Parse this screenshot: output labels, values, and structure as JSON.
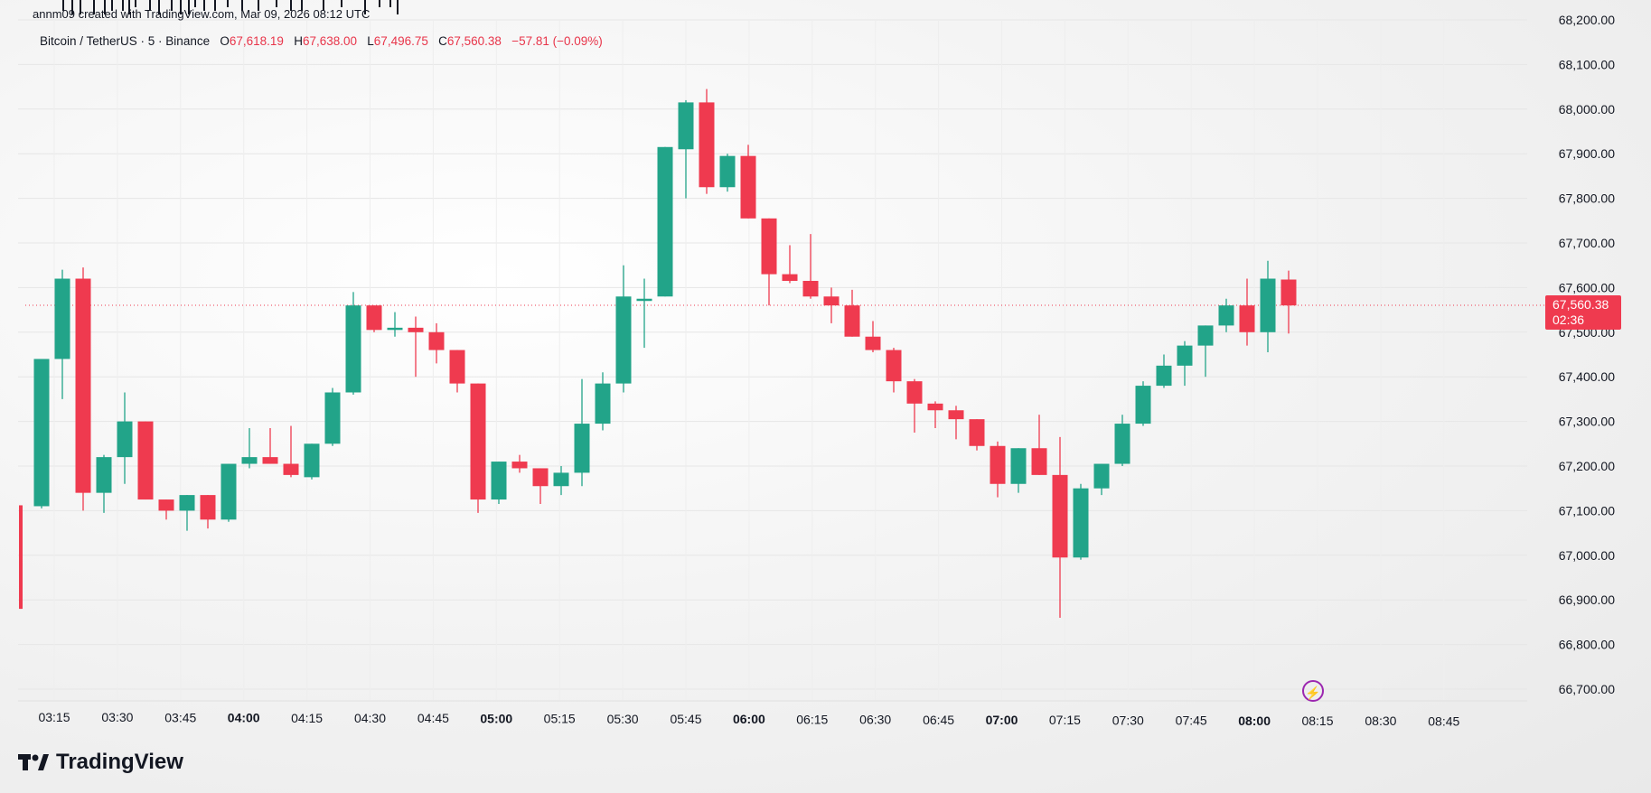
{
  "credit": "annm09 created with TradingView.com, Mar 09, 2026 08:12 UTC",
  "legend": {
    "symbol": "Bitcoin / TetherUS · 5 · Binance",
    "o_label": "O",
    "o": "67,618.19",
    "h_label": "H",
    "h": "67,638.00",
    "l_label": "L",
    "l": "67,496.75",
    "c_label": "C",
    "c": "67,560.38",
    "change": "−57.81 (−0.09%)"
  },
  "last_price": {
    "value": "67,560.38",
    "countdown": "02:36"
  },
  "brand": "TradingView",
  "colors": {
    "up": "#22a489",
    "down": "#ef3a4f",
    "axis_text": "#131722"
  },
  "chart_data": {
    "type": "candlestick",
    "y_axis": {
      "min": 66700,
      "max": 68200,
      "ticks": [
        "68,200.00",
        "68,100.00",
        "68,000.00",
        "67,900.00",
        "67,800.00",
        "67,700.00",
        "67,600.00",
        "67,500.00",
        "67,400.00",
        "67,300.00",
        "67,200.00",
        "67,100.00",
        "67,000.00",
        "66,900.00",
        "66,800.00",
        "66,700.00"
      ]
    },
    "x_axis": {
      "labels": [
        "03:15",
        "03:30",
        "03:45",
        "04:00",
        "04:15",
        "04:30",
        "04:45",
        "05:00",
        "05:15",
        "05:30",
        "05:45",
        "06:00",
        "06:15",
        "06:30",
        "06:45",
        "07:00",
        "07:15",
        "07:30",
        "07:45",
        "08:00",
        "08:15",
        "08:30",
        "08:45"
      ],
      "bold": [
        "04:00",
        "05:00",
        "06:00",
        "07:00",
        "08:00"
      ]
    },
    "last_price": 67560.38,
    "candles": [
      {
        "o": 67112,
        "h": 67112,
        "l": 66880,
        "c": 66880
      },
      {
        "o": 67110,
        "h": 67440,
        "l": 67105,
        "c": 67440
      },
      {
        "o": 67440,
        "h": 67640,
        "l": 67350,
        "c": 67620
      },
      {
        "o": 67620,
        "h": 67645,
        "l": 67100,
        "c": 67140
      },
      {
        "o": 67140,
        "h": 67225,
        "l": 67095,
        "c": 67220
      },
      {
        "o": 67220,
        "h": 67365,
        "l": 67160,
        "c": 67300
      },
      {
        "o": 67300,
        "h": 67300,
        "l": 67125,
        "c": 67125
      },
      {
        "o": 67125,
        "h": 67125,
        "l": 67080,
        "c": 67100
      },
      {
        "o": 67100,
        "h": 67135,
        "l": 67055,
        "c": 67135
      },
      {
        "o": 67135,
        "h": 67135,
        "l": 67060,
        "c": 67080
      },
      {
        "o": 67080,
        "h": 67205,
        "l": 67075,
        "c": 67205
      },
      {
        "o": 67205,
        "h": 67285,
        "l": 67195,
        "c": 67220
      },
      {
        "o": 67220,
        "h": 67285,
        "l": 67205,
        "c": 67205
      },
      {
        "o": 67205,
        "h": 67290,
        "l": 67175,
        "c": 67180
      },
      {
        "o": 67175,
        "h": 67250,
        "l": 67170,
        "c": 67250
      },
      {
        "o": 67250,
        "h": 67375,
        "l": 67245,
        "c": 67365
      },
      {
        "o": 67365,
        "h": 67590,
        "l": 67360,
        "c": 67560
      },
      {
        "o": 67560,
        "h": 67560,
        "l": 67500,
        "c": 67505
      },
      {
        "o": 67505,
        "h": 67545,
        "l": 67490,
        "c": 67510
      },
      {
        "o": 67510,
        "h": 67535,
        "l": 67400,
        "c": 67500
      },
      {
        "o": 67500,
        "h": 67520,
        "l": 67430,
        "c": 67460
      },
      {
        "o": 67460,
        "h": 67460,
        "l": 67365,
        "c": 67385
      },
      {
        "o": 67385,
        "h": 67385,
        "l": 67095,
        "c": 67125
      },
      {
        "o": 67125,
        "h": 67210,
        "l": 67115,
        "c": 67210
      },
      {
        "o": 67210,
        "h": 67225,
        "l": 67185,
        "c": 67195
      },
      {
        "o": 67195,
        "h": 67195,
        "l": 67115,
        "c": 67155
      },
      {
        "o": 67155,
        "h": 67200,
        "l": 67135,
        "c": 67185
      },
      {
        "o": 67185,
        "h": 67395,
        "l": 67155,
        "c": 67295
      },
      {
        "o": 67295,
        "h": 67410,
        "l": 67280,
        "c": 67385
      },
      {
        "o": 67385,
        "h": 67650,
        "l": 67365,
        "c": 67580
      },
      {
        "o": 67570,
        "h": 67620,
        "l": 67465,
        "c": 67575
      },
      {
        "o": 67580,
        "h": 67915,
        "l": 67580,
        "c": 67915
      },
      {
        "o": 67910,
        "h": 68020,
        "l": 67800,
        "c": 68015
      },
      {
        "o": 68015,
        "h": 68045,
        "l": 67810,
        "c": 67825
      },
      {
        "o": 67825,
        "h": 67900,
        "l": 67815,
        "c": 67895
      },
      {
        "o": 67895,
        "h": 67920,
        "l": 67755,
        "c": 67755
      },
      {
        "o": 67755,
        "h": 67755,
        "l": 67560,
        "c": 67630
      },
      {
        "o": 67630,
        "h": 67695,
        "l": 67610,
        "c": 67615
      },
      {
        "o": 67615,
        "h": 67720,
        "l": 67575,
        "c": 67580
      },
      {
        "o": 67580,
        "h": 67600,
        "l": 67520,
        "c": 67560
      },
      {
        "o": 67560,
        "h": 67595,
        "l": 67490,
        "c": 67490
      },
      {
        "o": 67490,
        "h": 67525,
        "l": 67455,
        "c": 67460
      },
      {
        "o": 67460,
        "h": 67465,
        "l": 67365,
        "c": 67390
      },
      {
        "o": 67390,
        "h": 67395,
        "l": 67275,
        "c": 67340
      },
      {
        "o": 67340,
        "h": 67345,
        "l": 67285,
        "c": 67325
      },
      {
        "o": 67325,
        "h": 67335,
        "l": 67260,
        "c": 67305
      },
      {
        "o": 67305,
        "h": 67305,
        "l": 67235,
        "c": 67245
      },
      {
        "o": 67245,
        "h": 67255,
        "l": 67130,
        "c": 67160
      },
      {
        "o": 67160,
        "h": 67240,
        "l": 67140,
        "c": 67240
      },
      {
        "o": 67240,
        "h": 67315,
        "l": 67180,
        "c": 67180
      },
      {
        "o": 67180,
        "h": 67265,
        "l": 66860,
        "c": 66995
      },
      {
        "o": 66995,
        "h": 67160,
        "l": 66990,
        "c": 67150
      },
      {
        "o": 67150,
        "h": 67205,
        "l": 67135,
        "c": 67205
      },
      {
        "o": 67205,
        "h": 67315,
        "l": 67200,
        "c": 67295
      },
      {
        "o": 67295,
        "h": 67390,
        "l": 67290,
        "c": 67380
      },
      {
        "o": 67380,
        "h": 67450,
        "l": 67375,
        "c": 67425
      },
      {
        "o": 67425,
        "h": 67480,
        "l": 67380,
        "c": 67470
      },
      {
        "o": 67470,
        "h": 67515,
        "l": 67400,
        "c": 67515
      },
      {
        "o": 67515,
        "h": 67575,
        "l": 67500,
        "c": 67560
      },
      {
        "o": 67560,
        "h": 67620,
        "l": 67470,
        "c": 67500
      },
      {
        "o": 67500,
        "h": 67660,
        "l": 67455,
        "c": 67620
      },
      {
        "o": 67618,
        "h": 67638,
        "l": 67497,
        "c": 67560
      }
    ]
  }
}
